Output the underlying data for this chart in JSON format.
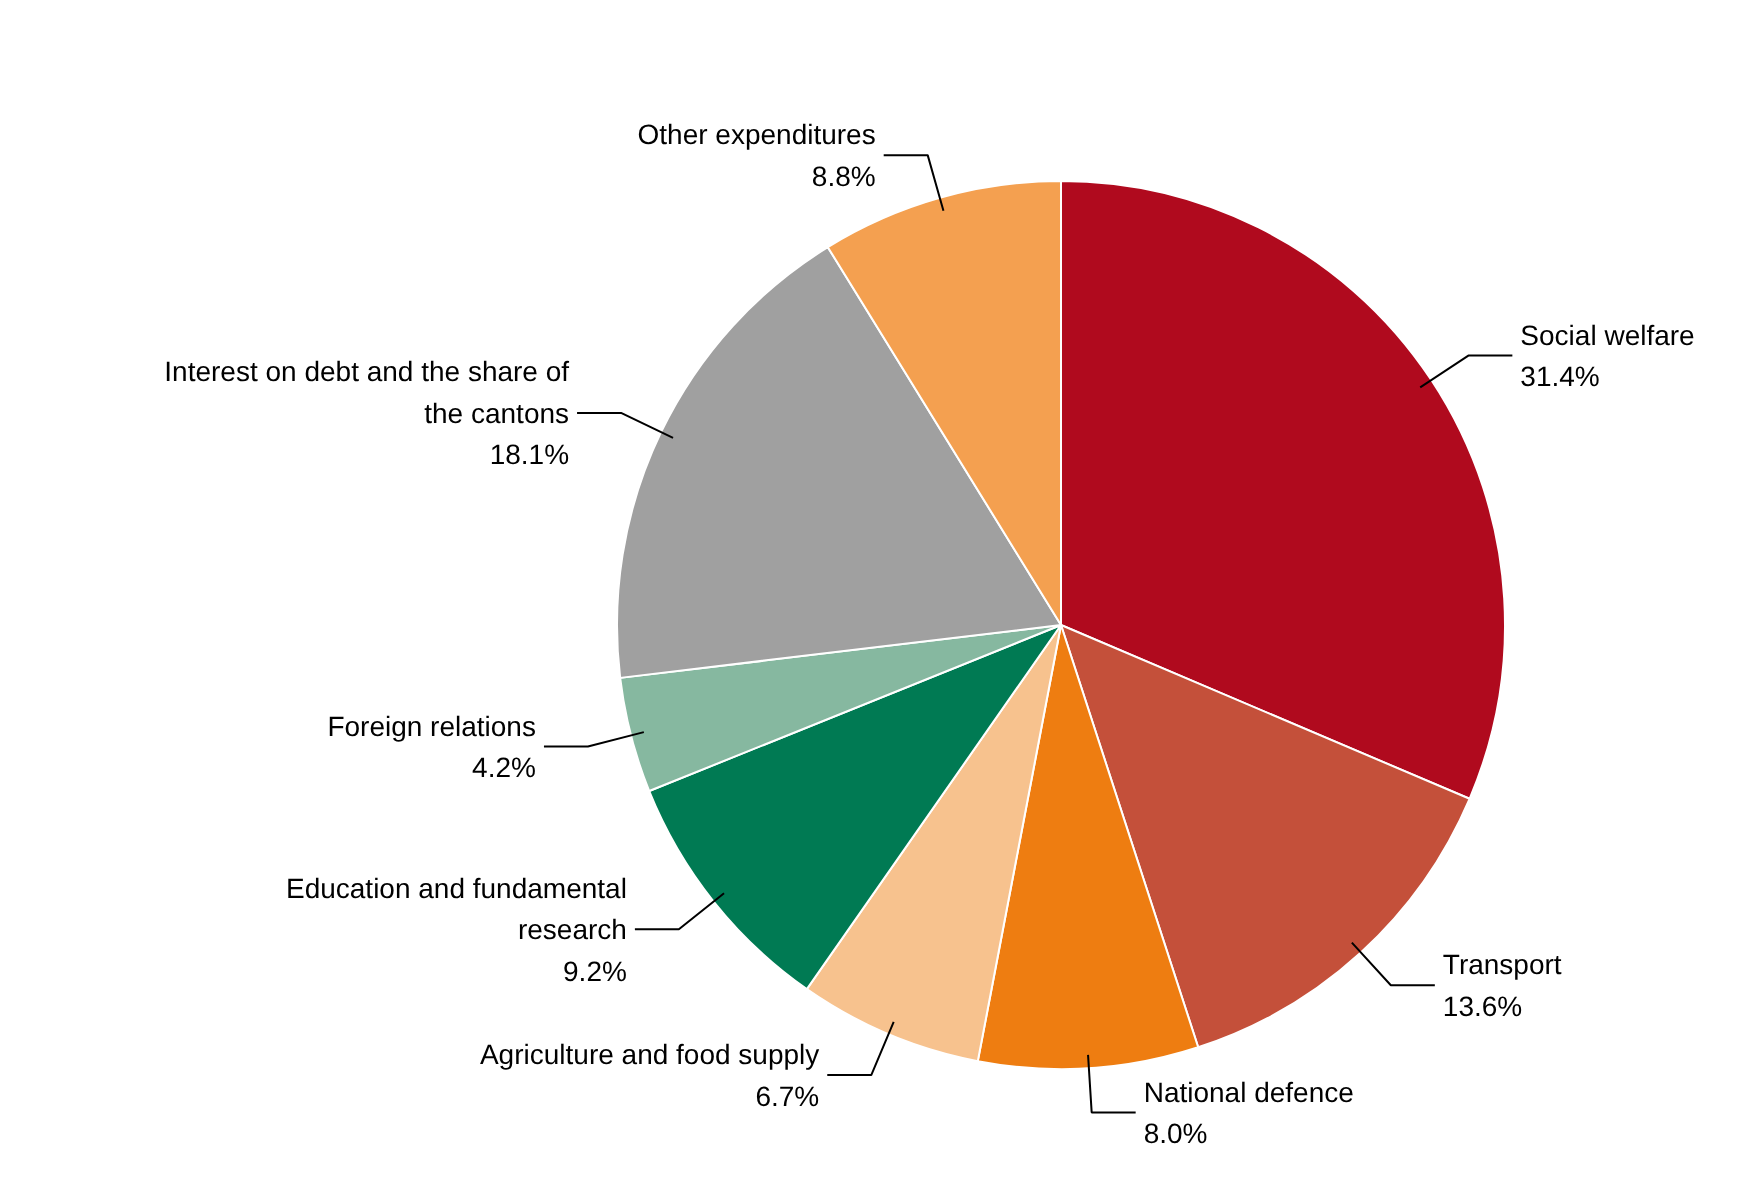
{
  "chart_data": {
    "type": "pie",
    "categories": [
      "Social welfare",
      "Transport",
      "National defence",
      "Agriculture and food supply",
      "Education and fundamental research",
      "Foreign relations",
      "Interest on debt and the share of the cantons",
      "Other expenditures"
    ],
    "values": [
      31.4,
      13.6,
      8.0,
      6.7,
      9.2,
      4.2,
      18.1,
      8.8
    ],
    "value_labels": [
      "31.4%",
      "13.6%",
      "8.0%",
      "6.7%",
      "9.2%",
      "4.2%",
      "18.1%",
      "8.8%"
    ],
    "colors": [
      "#b00a1e",
      "#c4503a",
      "#ee7d11",
      "#f7c28e",
      "#007a53",
      "#86b8a0",
      "#a0a0a0",
      "#f4a050"
    ],
    "legend": false
  }
}
